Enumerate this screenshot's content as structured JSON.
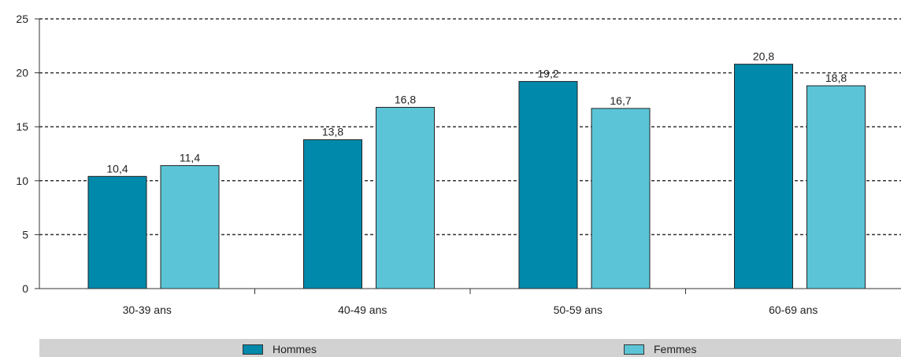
{
  "chart_data": {
    "type": "bar",
    "categories": [
      "30-39 ans",
      "40-49 ans",
      "50-59 ans",
      "60-69 ans"
    ],
    "series": [
      {
        "name": "Hommes",
        "values": [
          10.4,
          13.8,
          19.2,
          20.8
        ],
        "labels": [
          "10,4",
          "13,8",
          "19,2",
          "20,8"
        ],
        "color": "#0089aa"
      },
      {
        "name": "Femmes",
        "values": [
          11.4,
          16.8,
          16.7,
          18.8
        ],
        "labels": [
          "11,4",
          "16,8",
          "16,7",
          "18,8"
        ],
        "color": "#5bc5d7"
      }
    ],
    "yticks": [
      0,
      5,
      10,
      15,
      20,
      25
    ],
    "ylim": [
      0,
      25
    ],
    "grid": true,
    "legend_position": "bottom"
  }
}
